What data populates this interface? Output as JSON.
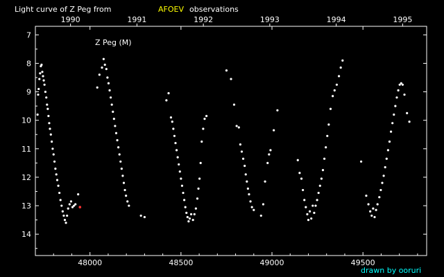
{
  "title": {
    "prefix": "Light curve of Z Peg from",
    "source": "AFOEV",
    "suffix": "observations"
  },
  "credit": "drawn by ooruri",
  "colors": {
    "background": "#000000",
    "text": "#ffffff",
    "accent": "#ffff00",
    "credit": "#00ffff",
    "point": "#ffffff",
    "highlight": "#ff3333"
  },
  "chart_data": {
    "type": "scatter",
    "star_label": "Z Peg (M)",
    "xlim": [
      47700,
      49850
    ],
    "ylim": [
      14.75,
      6.7
    ],
    "y_inverted": true,
    "x_ticks": [
      48000,
      48500,
      49000,
      49500
    ],
    "x_tick_labels": [
      "48000",
      "48500",
      "49000",
      "49500"
    ],
    "y_ticks": [
      7,
      8,
      9,
      10,
      11,
      12,
      13,
      14
    ],
    "y_tick_labels": [
      "7",
      "8",
      "9",
      "10",
      "11",
      "12",
      "13",
      "14"
    ],
    "top_axis": {
      "ticks": [
        47893,
        48258,
        48623,
        48988,
        49353,
        49718
      ],
      "labels": [
        "1990",
        "1991",
        "1992",
        "1993",
        "1994",
        "1995"
      ]
    },
    "grid": false,
    "series": [
      {
        "points": [
          [
            47712,
            9.8
          ],
          [
            47715,
            9.1
          ],
          [
            47718,
            8.9
          ],
          [
            47722,
            8.55
          ],
          [
            47726,
            8.35
          ],
          [
            47730,
            8.1
          ],
          [
            47734,
            8.05
          ],
          [
            47738,
            8.3
          ],
          [
            47742,
            8.45
          ],
          [
            47746,
            8.6
          ],
          [
            47750,
            8.75
          ],
          [
            47755,
            9.0
          ],
          [
            47760,
            9.2
          ],
          [
            47764,
            9.45
          ],
          [
            47768,
            9.6
          ],
          [
            47772,
            9.85
          ],
          [
            47776,
            10.1
          ],
          [
            47780,
            10.3
          ],
          [
            47785,
            10.5
          ],
          [
            47790,
            10.75
          ],
          [
            47795,
            11.0
          ],
          [
            47800,
            11.2
          ],
          [
            47805,
            11.45
          ],
          [
            47810,
            11.7
          ],
          [
            47815,
            11.9
          ],
          [
            47820,
            12.1
          ],
          [
            47826,
            12.3
          ],
          [
            47832,
            12.55
          ],
          [
            47838,
            12.8
          ],
          [
            47844,
            13.0
          ],
          [
            47850,
            13.2
          ],
          [
            47856,
            13.35
          ],
          [
            47862,
            13.5
          ],
          [
            47868,
            13.6
          ],
          [
            47874,
            13.35
          ],
          [
            47880,
            13.1
          ],
          [
            47888,
            12.95
          ],
          [
            47896,
            12.85
          ],
          [
            47904,
            13.05
          ],
          [
            47912,
            13.0
          ],
          [
            47920,
            12.95
          ],
          [
            47935,
            12.6
          ]
        ]
      },
      {
        "points": [
          [
            48040,
            8.85
          ],
          [
            48052,
            8.4
          ],
          [
            48066,
            8.15
          ],
          [
            48075,
            7.85
          ],
          [
            48082,
            8.05
          ],
          [
            48090,
            8.2
          ],
          [
            48096,
            8.5
          ],
          [
            48102,
            8.7
          ],
          [
            48108,
            8.95
          ],
          [
            48114,
            9.2
          ],
          [
            48120,
            9.45
          ],
          [
            48126,
            9.7
          ],
          [
            48132,
            9.95
          ],
          [
            48138,
            10.2
          ],
          [
            48144,
            10.45
          ],
          [
            48150,
            10.7
          ],
          [
            48156,
            10.95
          ],
          [
            48162,
            11.2
          ],
          [
            48168,
            11.45
          ],
          [
            48174,
            11.7
          ],
          [
            48180,
            11.95
          ],
          [
            48186,
            12.2
          ],
          [
            48192,
            12.45
          ],
          [
            48198,
            12.65
          ],
          [
            48206,
            12.85
          ],
          [
            48214,
            13.0
          ],
          [
            48280,
            13.35
          ],
          [
            48300,
            13.4
          ]
        ]
      },
      {
        "points": [
          [
            48420,
            9.3
          ],
          [
            48432,
            9.05
          ],
          [
            48445,
            9.9
          ],
          [
            48452,
            10.05
          ],
          [
            48458,
            10.3
          ],
          [
            48464,
            10.55
          ],
          [
            48470,
            10.8
          ],
          [
            48476,
            11.05
          ],
          [
            48482,
            11.3
          ],
          [
            48488,
            11.55
          ],
          [
            48494,
            11.8
          ],
          [
            48500,
            12.05
          ],
          [
            48506,
            12.3
          ],
          [
            48512,
            12.55
          ],
          [
            48518,
            12.8
          ],
          [
            48524,
            13.05
          ],
          [
            48530,
            13.25
          ],
          [
            48536,
            13.4
          ],
          [
            48542,
            13.55
          ],
          [
            48548,
            13.45
          ],
          [
            48556,
            13.3
          ],
          [
            48566,
            13.5
          ],
          [
            48574,
            13.3
          ],
          [
            48582,
            13.1
          ],
          [
            48590,
            12.75
          ],
          [
            48596,
            12.4
          ],
          [
            48602,
            12.05
          ],
          [
            48608,
            11.5
          ],
          [
            48614,
            10.75
          ],
          [
            48622,
            10.3
          ],
          [
            48630,
            9.95
          ],
          [
            48640,
            9.85
          ]
        ]
      },
      {
        "points": [
          [
            48750,
            8.25
          ],
          [
            48775,
            8.55
          ],
          [
            48792,
            9.45
          ],
          [
            48806,
            10.2
          ],
          [
            48818,
            10.25
          ],
          [
            48826,
            10.85
          ],
          [
            48834,
            11.1
          ],
          [
            48842,
            11.35
          ],
          [
            48850,
            11.6
          ],
          [
            48856,
            11.9
          ],
          [
            48862,
            12.15
          ],
          [
            48868,
            12.4
          ],
          [
            48874,
            12.6
          ],
          [
            48882,
            12.85
          ],
          [
            48890,
            13.05
          ],
          [
            48900,
            13.15
          ],
          [
            48940,
            13.35
          ],
          [
            48952,
            12.95
          ],
          [
            48962,
            12.15
          ],
          [
            48976,
            11.5
          ],
          [
            48984,
            11.2
          ],
          [
            48992,
            11.05
          ],
          [
            49010,
            10.35
          ],
          [
            49030,
            9.65
          ]
        ]
      },
      {
        "points": [
          [
            49142,
            11.4
          ],
          [
            49152,
            11.85
          ],
          [
            49162,
            12.05
          ],
          [
            49170,
            12.45
          ],
          [
            49178,
            12.8
          ],
          [
            49186,
            13.05
          ],
          [
            49194,
            13.3
          ],
          [
            49200,
            13.5
          ],
          [
            49208,
            13.2
          ],
          [
            49216,
            13.45
          ],
          [
            49224,
            13.0
          ],
          [
            49232,
            13.25
          ],
          [
            49240,
            13.0
          ],
          [
            49248,
            12.8
          ],
          [
            49256,
            12.55
          ],
          [
            49264,
            12.3
          ],
          [
            49272,
            12.05
          ],
          [
            49280,
            11.75
          ],
          [
            49288,
            11.35
          ],
          [
            49296,
            10.95
          ],
          [
            49304,
            10.55
          ],
          [
            49312,
            10.15
          ],
          [
            49322,
            9.6
          ],
          [
            49334,
            9.15
          ],
          [
            49344,
            8.95
          ],
          [
            49356,
            8.75
          ],
          [
            49368,
            8.45
          ],
          [
            49378,
            8.15
          ],
          [
            49388,
            7.9
          ]
        ]
      },
      {
        "points": [
          [
            49490,
            11.45
          ],
          [
            49518,
            12.65
          ],
          [
            49530,
            12.95
          ],
          [
            49540,
            13.2
          ],
          [
            49548,
            13.35
          ],
          [
            49556,
            13.1
          ],
          [
            49564,
            13.4
          ],
          [
            49572,
            13.15
          ],
          [
            49580,
            12.95
          ],
          [
            49590,
            12.7
          ],
          [
            49598,
            12.45
          ],
          [
            49606,
            12.2
          ],
          [
            49614,
            11.95
          ],
          [
            49622,
            11.65
          ],
          [
            49630,
            11.35
          ],
          [
            49638,
            11.05
          ],
          [
            49646,
            10.75
          ],
          [
            49654,
            10.4
          ],
          [
            49662,
            10.1
          ],
          [
            49670,
            9.8
          ],
          [
            49678,
            9.5
          ],
          [
            49686,
            9.2
          ],
          [
            49694,
            8.95
          ],
          [
            49702,
            8.75
          ],
          [
            49710,
            8.7
          ],
          [
            49718,
            8.75
          ],
          [
            49728,
            9.1
          ],
          [
            49742,
            9.75
          ],
          [
            49755,
            10.05
          ]
        ]
      }
    ],
    "highlight_points": [
      [
        47945,
        13.05
      ]
    ]
  }
}
